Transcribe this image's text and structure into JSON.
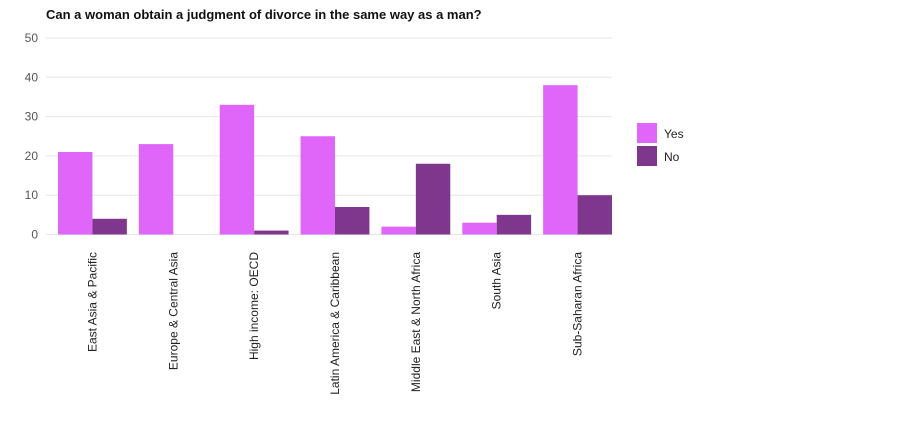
{
  "chart_data": {
    "type": "bar",
    "title": "Can a woman obtain a judgment of divorce in the same way as a man?",
    "xlabel": "",
    "ylabel": "",
    "ylim": [
      0,
      50
    ],
    "yticks": [
      "0",
      "10",
      "20",
      "30",
      "40",
      "50"
    ],
    "grid": true,
    "legend_position": "right",
    "categories": [
      "East Asia & Pacific",
      "Europe & Central Asia",
      "High income: OECD",
      "Latin America & Caribbean",
      "Middle East & North Africa",
      "South Asia",
      "Sub-Saharan Africa"
    ],
    "series": [
      {
        "name": "Yes",
        "color": "#df66f8",
        "values": [
          21,
          23,
          33,
          25,
          2,
          3,
          38
        ]
      },
      {
        "name": "No",
        "color": "#7e378c",
        "values": [
          4,
          0,
          1,
          7,
          18,
          5,
          10
        ]
      }
    ]
  }
}
